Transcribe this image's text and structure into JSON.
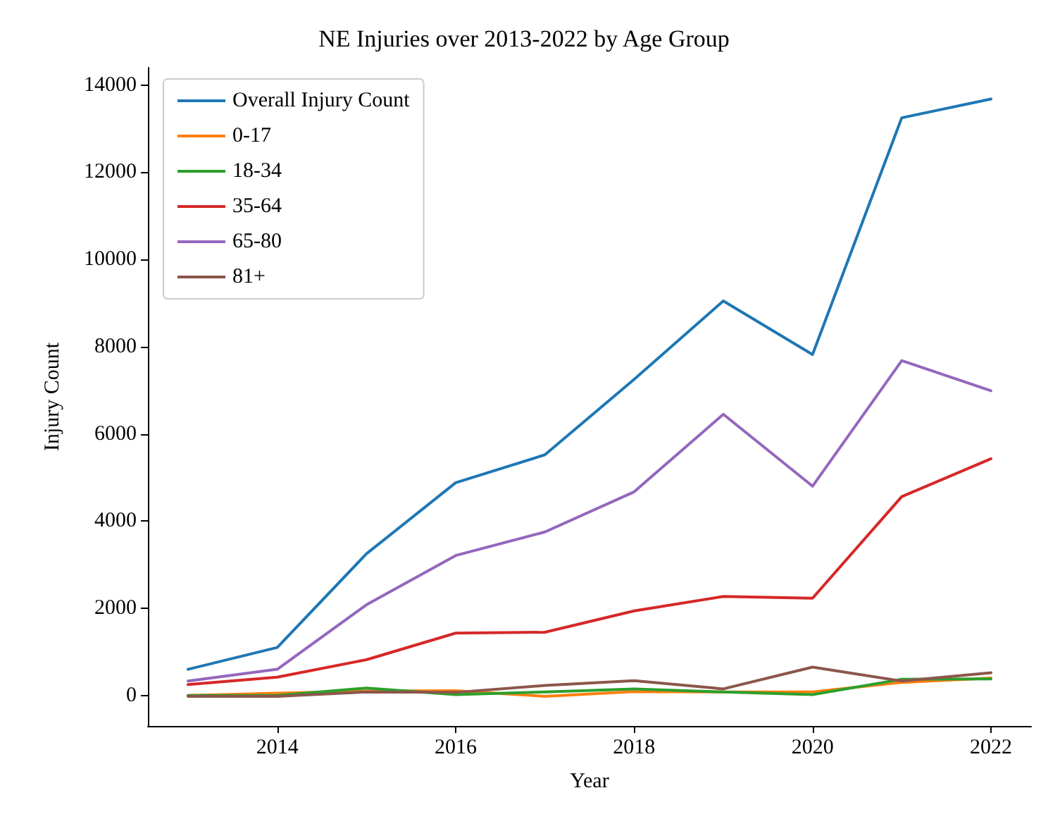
{
  "chart_data": {
    "type": "line",
    "title": "NE Injuries over 2013-2022 by Age Group",
    "xlabel": "Year",
    "ylabel": "Injury Count",
    "x": [
      2013,
      2014,
      2015,
      2016,
      2017,
      2018,
      2019,
      2020,
      2021,
      2022
    ],
    "series": [
      {
        "name": "Overall Injury Count",
        "color": "#1f77b4",
        "values": [
          600,
          1100,
          3250,
          4880,
          5520,
          7250,
          9050,
          7820,
          13250,
          13680
        ]
      },
      {
        "name": "0-17",
        "color": "#ff7f0e",
        "values": [
          0,
          50,
          100,
          110,
          -20,
          90,
          80,
          80,
          300,
          400
        ]
      },
      {
        "name": "18-34",
        "color": "#2ca02c",
        "values": [
          0,
          0,
          170,
          20,
          80,
          150,
          80,
          20,
          370,
          380
        ]
      },
      {
        "name": "35-64",
        "color": "#d62728",
        "values": [
          250,
          420,
          820,
          1430,
          1450,
          1940,
          2270,
          2230,
          4560,
          5430
        ]
      },
      {
        "name": "65-80",
        "color": "#9467bd",
        "values": [
          330,
          600,
          2080,
          3210,
          3750,
          4670,
          6450,
          4800,
          7680,
          6990
        ]
      },
      {
        "name": "81+",
        "color": "#8c564b",
        "values": [
          -20,
          -20,
          80,
          70,
          230,
          340,
          150,
          650,
          330,
          520
        ]
      }
    ],
    "xlim": [
      2012.55,
      2022.45
    ],
    "xticks": [
      2014,
      2016,
      2018,
      2020,
      2022
    ],
    "ylim": [
      -700,
      14400
    ],
    "yticks": [
      0,
      2000,
      4000,
      6000,
      8000,
      10000,
      12000,
      14000
    ],
    "grid": false,
    "legend": "top left",
    "marker": "none",
    "line_style": "solid"
  }
}
